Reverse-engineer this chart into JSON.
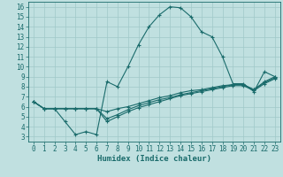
{
  "title": "",
  "xlabel": "Humidex (Indice chaleur)",
  "bg_color": "#c0e0e0",
  "line_color": "#1a6b6b",
  "grid_color": "#a0c8c8",
  "xlim": [
    -0.5,
    23.5
  ],
  "ylim": [
    2.5,
    16.5
  ],
  "xticks": [
    0,
    1,
    2,
    3,
    4,
    5,
    6,
    7,
    8,
    9,
    10,
    11,
    12,
    13,
    14,
    15,
    16,
    17,
    18,
    19,
    20,
    21,
    22,
    23
  ],
  "yticks": [
    3,
    4,
    5,
    6,
    7,
    8,
    9,
    10,
    11,
    12,
    13,
    14,
    15,
    16
  ],
  "line1_x": [
    0,
    1,
    2,
    3,
    4,
    5,
    6,
    7,
    8,
    9,
    10,
    11,
    12,
    13,
    14,
    15,
    16,
    17,
    18,
    19,
    20,
    21,
    22,
    23
  ],
  "line1_y": [
    6.5,
    5.8,
    5.8,
    4.5,
    3.2,
    3.5,
    3.2,
    8.5,
    8.0,
    10.0,
    12.2,
    14.0,
    15.2,
    16.0,
    15.9,
    15.0,
    13.5,
    13.0,
    11.0,
    8.3,
    8.3,
    7.5,
    9.5,
    9.0
  ],
  "line2_x": [
    0,
    1,
    2,
    3,
    4,
    5,
    6,
    7,
    8,
    9,
    10,
    11,
    12,
    13,
    14,
    15,
    16,
    17,
    18,
    19,
    20,
    21,
    22,
    23
  ],
  "line2_y": [
    6.5,
    5.8,
    5.8,
    5.8,
    5.8,
    5.8,
    5.8,
    5.5,
    5.8,
    6.0,
    6.3,
    6.6,
    6.9,
    7.1,
    7.4,
    7.6,
    7.7,
    7.9,
    8.1,
    8.2,
    8.2,
    7.7,
    8.5,
    9.0
  ],
  "line3_x": [
    0,
    1,
    2,
    3,
    4,
    5,
    6,
    7,
    8,
    9,
    10,
    11,
    12,
    13,
    14,
    15,
    16,
    17,
    18,
    19,
    20,
    21,
    22,
    23
  ],
  "line3_y": [
    6.5,
    5.8,
    5.8,
    5.8,
    5.8,
    5.8,
    5.8,
    4.5,
    5.0,
    5.5,
    5.9,
    6.2,
    6.5,
    6.8,
    7.1,
    7.3,
    7.5,
    7.7,
    7.9,
    8.1,
    8.1,
    7.6,
    8.3,
    8.8
  ],
  "line4_x": [
    0,
    1,
    2,
    3,
    4,
    5,
    6,
    7,
    8,
    9,
    10,
    11,
    12,
    13,
    14,
    15,
    16,
    17,
    18,
    19,
    20,
    21,
    22,
    23
  ],
  "line4_y": [
    6.5,
    5.8,
    5.8,
    5.8,
    5.8,
    5.8,
    5.8,
    4.8,
    5.2,
    5.7,
    6.1,
    6.4,
    6.7,
    6.9,
    7.2,
    7.4,
    7.6,
    7.8,
    8.0,
    8.2,
    8.2,
    7.7,
    8.4,
    8.9
  ],
  "tick_fontsize": 5.5,
  "xlabel_fontsize": 6.5
}
